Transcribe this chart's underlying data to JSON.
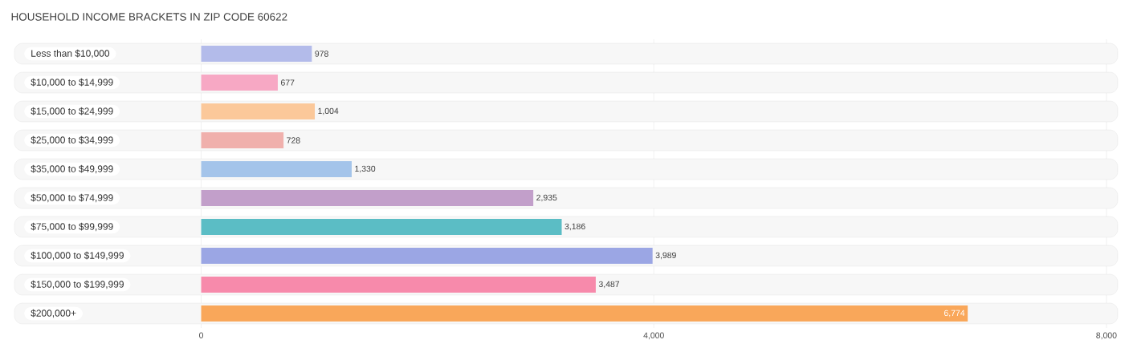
{
  "chart_data": {
    "type": "bar",
    "orientation": "horizontal",
    "title": "HOUSEHOLD INCOME BRACKETS IN ZIP CODE 60622",
    "categories": [
      "Less than $10,000",
      "$10,000 to $14,999",
      "$15,000 to $24,999",
      "$25,000 to $34,999",
      "$35,000 to $49,999",
      "$50,000 to $74,999",
      "$75,000 to $99,999",
      "$100,000 to $149,999",
      "$150,000 to $199,999",
      "$200,000+"
    ],
    "values": [
      978,
      677,
      1004,
      728,
      1330,
      2935,
      3186,
      3989,
      3487,
      6774
    ],
    "value_labels": [
      "978",
      "677",
      "1,004",
      "728",
      "1,330",
      "2,935",
      "3,186",
      "3,989",
      "3,487",
      "6,774"
    ],
    "colors": [
      "#b3bbea",
      "#f7a8c4",
      "#fbc89a",
      "#f0b0ac",
      "#a4c4ea",
      "#c29fca",
      "#5bbdc5",
      "#9ba6e4",
      "#f78aab",
      "#f9a75a"
    ],
    "xlim": [
      -1650,
      8100
    ],
    "xticks": [
      0,
      {
        "value": 4000,
        "label": "4,000"
      },
      {
        "value": 8000,
        "label": "8,000"
      }
    ],
    "grid": "x"
  }
}
